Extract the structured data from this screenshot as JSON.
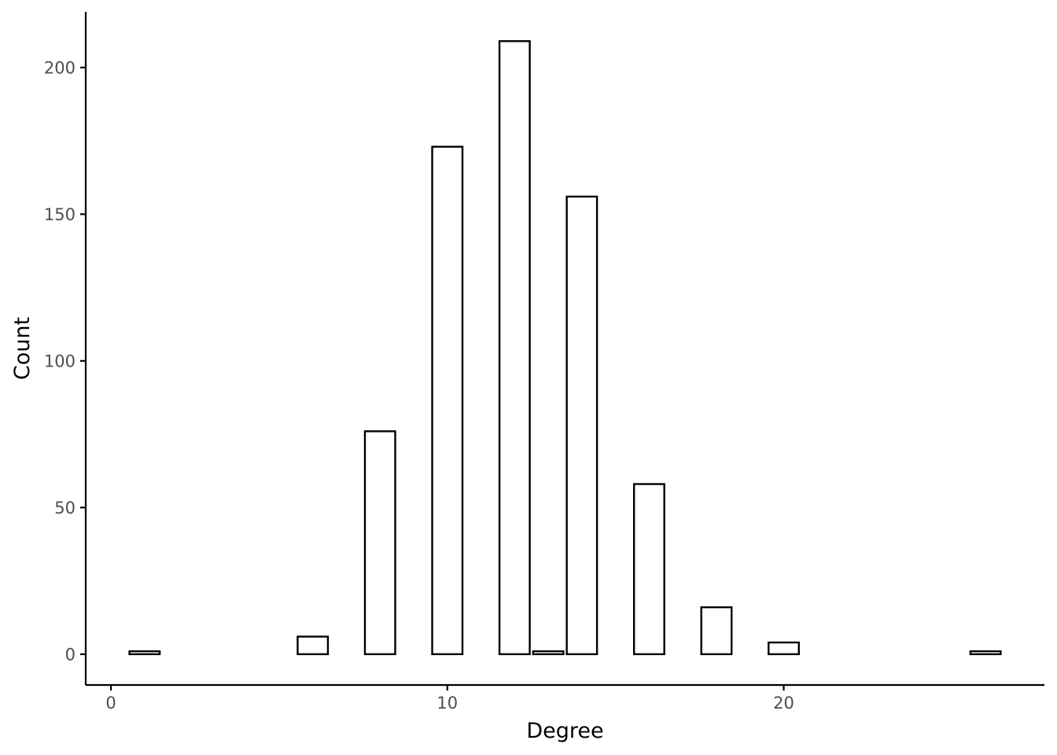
{
  "chart_data": {
    "type": "bar",
    "xlabel": "Degree",
    "ylabel": "Count",
    "xlim": [
      -0.75,
      27.75
    ],
    "ylim": [
      -10.5,
      219
    ],
    "x_ticks": [
      0,
      10,
      20
    ],
    "y_ticks": [
      0,
      50,
      100,
      150,
      200
    ],
    "bar_width": 0.9,
    "bars": [
      {
        "x": 1,
        "value": 1
      },
      {
        "x": 6,
        "value": 6
      },
      {
        "x": 8,
        "value": 76
      },
      {
        "x": 10,
        "value": 173
      },
      {
        "x": 12,
        "value": 209
      },
      {
        "x": 13,
        "value": 1
      },
      {
        "x": 14,
        "value": 156
      },
      {
        "x": 16,
        "value": 58
      },
      {
        "x": 18,
        "value": 16
      },
      {
        "x": 20,
        "value": 4
      },
      {
        "x": 26,
        "value": 1
      }
    ],
    "fill_color": "#ffffff",
    "stroke_color": "#000000",
    "grid": false,
    "legend": "none"
  }
}
